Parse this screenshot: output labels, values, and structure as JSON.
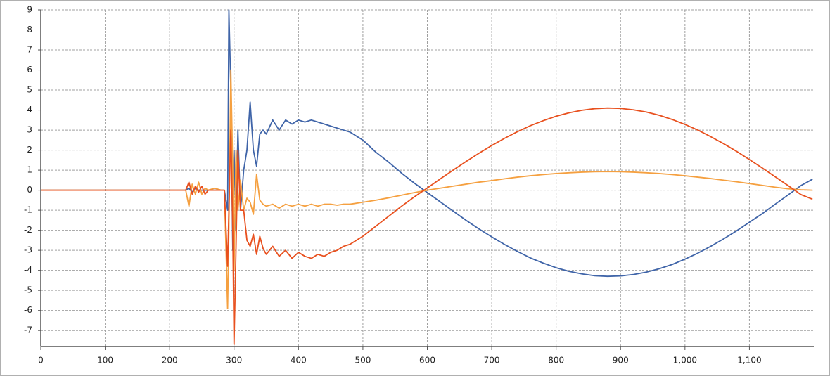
{
  "chart_data": {
    "type": "line",
    "x": [
      0,
      100,
      200,
      225,
      230,
      235,
      240,
      245,
      250,
      255,
      260,
      270,
      280,
      285,
      290,
      292,
      295,
      298,
      300,
      303,
      306,
      310,
      315,
      320,
      325,
      330,
      335,
      340,
      345,
      350,
      360,
      370,
      380,
      390,
      400,
      410,
      420,
      430,
      440,
      450,
      460,
      470,
      480,
      500,
      520,
      540,
      560,
      580,
      600,
      620,
      640,
      660,
      680,
      700,
      720,
      740,
      760,
      780,
      800,
      820,
      840,
      860,
      880,
      900,
      920,
      940,
      960,
      980,
      1000,
      1020,
      1040,
      1060,
      1080,
      1100,
      1120,
      1140,
      1160,
      1180,
      1198
    ],
    "series": [
      {
        "color": "#3f64a8",
        "values": [
          0,
          0,
          0,
          0,
          0.1,
          -0.1,
          0.1,
          0,
          0,
          0,
          0,
          0,
          0,
          0,
          -1,
          9,
          5,
          -3,
          2,
          -2,
          3,
          -1,
          1,
          2,
          4.4,
          2,
          1.2,
          2.8,
          3.0,
          2.8,
          3.5,
          3.0,
          3.5,
          3.3,
          3.5,
          3.4,
          3.5,
          3.4,
          3.3,
          3.2,
          3.1,
          3.0,
          2.9,
          2.5,
          1.9,
          1.4,
          0.85,
          0.35,
          -0.12,
          -0.58,
          -1.04,
          -1.5,
          -1.93,
          -2.33,
          -2.71,
          -3.06,
          -3.38,
          -3.64,
          -3.87,
          -4.05,
          -4.18,
          -4.27,
          -4.3,
          -4.28,
          -4.21,
          -4.09,
          -3.92,
          -3.71,
          -3.44,
          -3.14,
          -2.8,
          -2.43,
          -2.03,
          -1.6,
          -1.17,
          -0.7,
          -0.24,
          0.23,
          0.55
        ]
      },
      {
        "color": "#f5a040",
        "values": [
          0,
          0,
          0,
          0,
          -0.8,
          0.3,
          -0.2,
          0.4,
          -0.2,
          0.1,
          0,
          0.1,
          0,
          0,
          -5.9,
          -2,
          6,
          1,
          -4,
          2,
          -1,
          0.5,
          -1,
          -0.4,
          -0.6,
          -1.2,
          0.8,
          -0.5,
          -0.7,
          -0.8,
          -0.7,
          -0.9,
          -0.7,
          -0.8,
          -0.7,
          -0.8,
          -0.7,
          -0.8,
          -0.7,
          -0.7,
          -0.75,
          -0.7,
          -0.7,
          -0.6,
          -0.5,
          -0.38,
          -0.25,
          -0.12,
          0.0,
          0.1,
          0.2,
          0.3,
          0.4,
          0.48,
          0.57,
          0.65,
          0.72,
          0.78,
          0.83,
          0.87,
          0.9,
          0.92,
          0.93,
          0.92,
          0.9,
          0.87,
          0.83,
          0.78,
          0.72,
          0.65,
          0.58,
          0.5,
          0.42,
          0.33,
          0.24,
          0.15,
          0.07,
          0.02,
          0.0
        ]
      },
      {
        "color": "#e8501e",
        "values": [
          0,
          0,
          0,
          0,
          0.4,
          -0.2,
          0.2,
          -0.1,
          0.2,
          -0.2,
          0,
          0,
          0,
          0,
          -3.8,
          -1,
          3,
          -2,
          -7.7,
          -3,
          2,
          -1,
          -1,
          -2.5,
          -2.8,
          -2.2,
          -3.2,
          -2.3,
          -2.9,
          -3.2,
          -2.8,
          -3.3,
          -3.0,
          -3.4,
          -3.1,
          -3.3,
          -3.4,
          -3.2,
          -3.3,
          -3.1,
          -3.0,
          -2.8,
          -2.7,
          -2.3,
          -1.8,
          -1.3,
          -0.8,
          -0.33,
          0.11,
          0.56,
          1.0,
          1.43,
          1.84,
          2.23,
          2.59,
          2.92,
          3.22,
          3.47,
          3.69,
          3.86,
          3.99,
          4.07,
          4.1,
          4.08,
          4.01,
          3.9,
          3.74,
          3.53,
          3.28,
          3.0,
          2.67,
          2.32,
          1.94,
          1.53,
          1.11,
          0.67,
          0.23,
          -0.22,
          -0.45
        ]
      }
    ],
    "xlim": [
      0,
      1200
    ],
    "ylim": [
      -7.8,
      9
    ],
    "xticks": [
      0,
      100,
      200,
      300,
      400,
      500,
      600,
      700,
      800,
      900,
      {
        "value": 1000,
        "label": "1,000"
      },
      {
        "value": 1100,
        "label": "1,100"
      }
    ],
    "yticks": [
      -7,
      -6,
      -5,
      -4,
      -3,
      -2,
      -1,
      0,
      1,
      2,
      3,
      4,
      5,
      6,
      7,
      8,
      9
    ],
    "grid": true
  }
}
